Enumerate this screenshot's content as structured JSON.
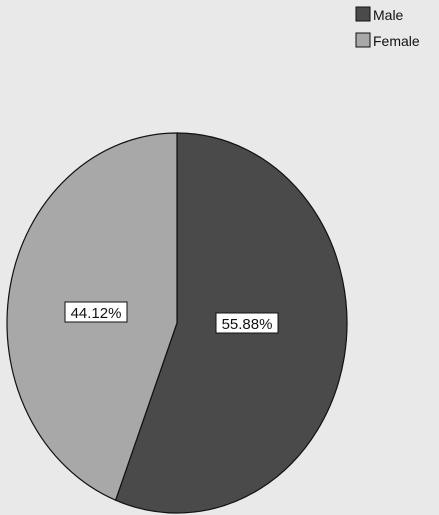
{
  "chart_data": {
    "type": "pie",
    "categories": [
      "Male",
      "Female"
    ],
    "values": [
      55.88,
      44.12
    ],
    "labels": [
      "55.88%",
      "44.12%"
    ],
    "colors": {
      "Male": "#4a4a4a",
      "Female": "#a8a8a8",
      "background": "#e9e9e9",
      "outline": "#111111"
    },
    "legend": {
      "position": "top-right",
      "entries": [
        "Male",
        "Female"
      ]
    }
  }
}
